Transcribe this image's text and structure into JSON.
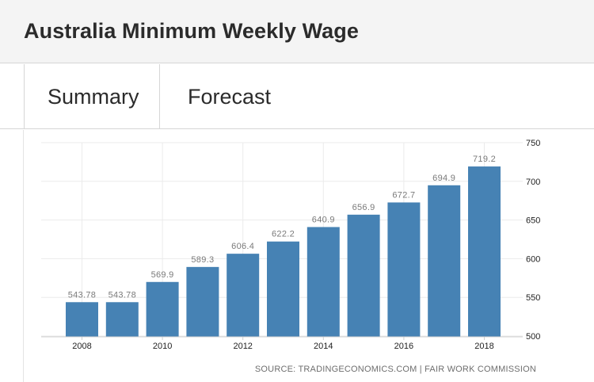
{
  "page": {
    "title": "Australia Minimum Weekly Wage",
    "tabs": [
      {
        "label": "Summary"
      },
      {
        "label": "Forecast"
      }
    ]
  },
  "colors": {
    "bar": "#4682b4",
    "grid": "#ebebeb",
    "label": "#7a7a7a",
    "axis_text": "#222222",
    "source_text": "#6e6e6e"
  },
  "chart_data": {
    "type": "bar",
    "title": "Australia Minimum Weekly Wage",
    "categories": [
      "2008",
      "2009",
      "2010",
      "2011",
      "2012",
      "2013",
      "2014",
      "2015",
      "2016",
      "2017",
      "2018"
    ],
    "values": [
      543.78,
      543.78,
      569.9,
      589.3,
      606.4,
      622.2,
      640.9,
      656.9,
      672.7,
      694.9,
      719.2
    ],
    "value_labels": [
      "543.78",
      "543.78",
      "569.9",
      "589.3",
      "606.4",
      "622.2",
      "640.9",
      "656.9",
      "672.7",
      "694.9",
      "719.2"
    ],
    "x_tick_labels": [
      "2008",
      "2010",
      "2012",
      "2014",
      "2016",
      "2018"
    ],
    "y_ticks": [
      500,
      550,
      600,
      650,
      700,
      750
    ],
    "y_tick_labels": [
      "500",
      "550",
      "600",
      "650",
      "700",
      "750"
    ],
    "ylim": [
      500,
      750
    ],
    "y_axis_side": "right",
    "grid": true,
    "xlabel": "",
    "ylabel": "",
    "source": "SOURCE: TRADINGECONOMICS.COM | FAIR WORK COMMISSION"
  }
}
